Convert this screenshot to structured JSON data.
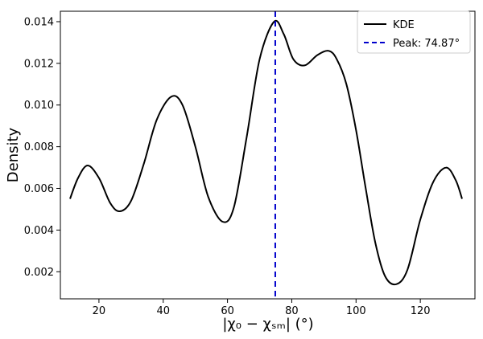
{
  "chart_data": {
    "type": "line",
    "xlabel": "|χ₀ − χₛₘ| (°)",
    "ylabel": "Density",
    "xlim": [
      8,
      137
    ],
    "ylim": [
      0.0007,
      0.0145
    ],
    "x_ticks": [
      20,
      40,
      60,
      80,
      100,
      120
    ],
    "y_ticks": [
      0.002,
      0.004,
      0.006,
      0.008,
      0.01,
      0.012,
      0.014
    ],
    "x_tick_labels": [
      "20",
      "40",
      "60",
      "80",
      "100",
      "120"
    ],
    "y_tick_labels": [
      "0.002",
      "0.004",
      "0.006",
      "0.008",
      "0.010",
      "0.012",
      "0.014"
    ],
    "grid": false,
    "legend_position": "top-right",
    "series": [
      {
        "name": "KDE",
        "color": "#000000",
        "style": "solid",
        "x": [
          11,
          13.5,
          16.5,
          20,
          23.5,
          26.5,
          30,
          34,
          38,
          42.5,
          46,
          50,
          54,
          58.5,
          62,
          66,
          70,
          74.5,
          77.5,
          80.5,
          84,
          88,
          91.5,
          94,
          97,
          100,
          103,
          106,
          109,
          112.5,
          116,
          120,
          124,
          128,
          131,
          133
        ],
        "y": [
          0.0055,
          0.0065,
          0.0071,
          0.0065,
          0.0053,
          0.0049,
          0.0054,
          0.0072,
          0.0093,
          0.0104,
          0.01,
          0.008,
          0.0056,
          0.0044,
          0.0051,
          0.0085,
          0.0122,
          0.014,
          0.0134,
          0.0122,
          0.0119,
          0.0124,
          0.0126,
          0.0122,
          0.011,
          0.0088,
          0.006,
          0.0034,
          0.0018,
          0.0014,
          0.0021,
          0.0045,
          0.0063,
          0.007,
          0.0064,
          0.0055
        ]
      }
    ],
    "reference_lines": [
      {
        "name": "Peak: 74.87°",
        "x": 74.87,
        "color": "#0000cc",
        "style": "dashed"
      }
    ]
  }
}
